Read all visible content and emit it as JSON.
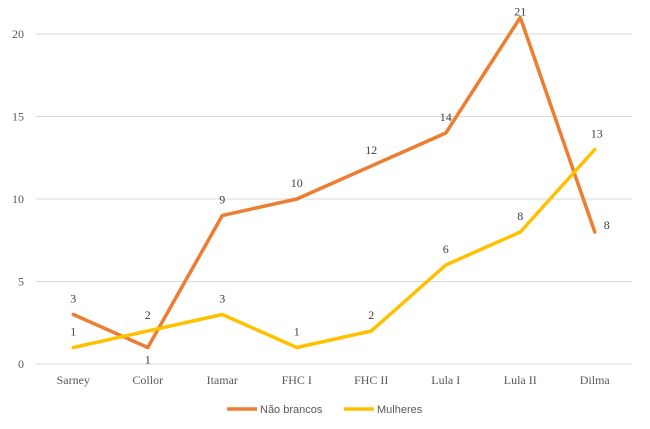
{
  "chart_data": {
    "type": "line",
    "categories": [
      "Sarney",
      "Collor",
      "Itamar",
      "FHC I",
      "FHC II",
      "Lula I",
      "Lula II",
      "Dilma"
    ],
    "series": [
      {
        "name": "Não brancos",
        "color": "#ED7D31",
        "values": [
          3,
          1,
          9,
          10,
          12,
          14,
          21,
          8
        ]
      },
      {
        "name": "Mulheres",
        "color": "#FFC000",
        "values": [
          1,
          2,
          3,
          1,
          2,
          6,
          8,
          13
        ]
      }
    ],
    "ylim": [
      0,
      20
    ],
    "yticks": [
      0,
      5,
      10,
      15,
      20
    ],
    "grid": true,
    "legend": "bottom",
    "title": "",
    "xlabel": "",
    "ylabel": ""
  }
}
